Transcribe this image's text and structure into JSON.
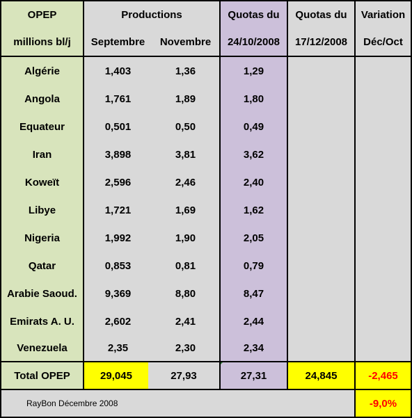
{
  "header": {
    "row1": [
      "OPEP",
      "Productions",
      "Quotas du",
      "Quotas du",
      "Variation"
    ],
    "row2": [
      "millions bl/j",
      "Septembre",
      "Novembre",
      "24/10/2008",
      "17/12/2008",
      "Déc/Oct"
    ]
  },
  "rows": [
    {
      "country": "Algérie",
      "sept": "1,403",
      "nov": "1,36",
      "q1": "1,29"
    },
    {
      "country": "Angola",
      "sept": "1,761",
      "nov": "1,89",
      "q1": "1,80"
    },
    {
      "country": "Equateur",
      "sept": "0,501",
      "nov": "0,50",
      "q1": "0,49"
    },
    {
      "country": "Iran",
      "sept": "3,898",
      "nov": "3,81",
      "q1": "3,62"
    },
    {
      "country": "Koweït",
      "sept": "2,596",
      "nov": "2,46",
      "q1": "2,40"
    },
    {
      "country": "Libye",
      "sept": "1,721",
      "nov": "1,69",
      "q1": "1,62"
    },
    {
      "country": "Nigeria",
      "sept": "1,992",
      "nov": "1,90",
      "q1": "2,05"
    },
    {
      "country": "Qatar",
      "sept": "0,853",
      "nov": "0,81",
      "q1": "0,79"
    },
    {
      "country": "Arabie Saoud.",
      "sept": "9,369",
      "nov": "8,80",
      "q1": "8,47"
    },
    {
      "country": "Emirats A. U.",
      "sept": "2,602",
      "nov": "2,41",
      "q1": "2,44"
    },
    {
      "country": "Venezuela",
      "sept": "2,35",
      "nov": "2,30",
      "q1": "2,34"
    }
  ],
  "total": {
    "label": "Total OPEP",
    "sept": "29,045",
    "nov": "27,93",
    "q1": "27,31",
    "q2": "24,845",
    "variation": "-2,465"
  },
  "footer": {
    "note": "RayBon Décembre 2008",
    "percent": "-9,0%"
  },
  "colors": {
    "country": "#d8e4bc",
    "data": "#d9d9d9",
    "quota_oct": "#ccc0da",
    "highlight": "#ffff00",
    "negative": "#ff0000"
  }
}
